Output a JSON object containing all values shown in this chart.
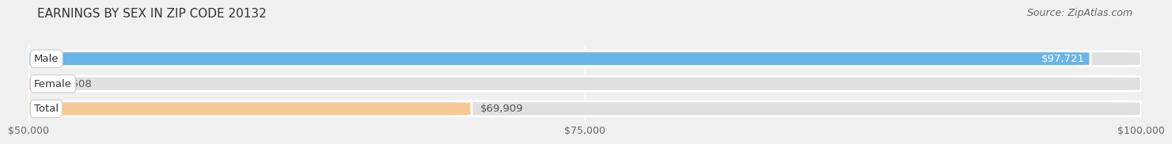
{
  "title": "EARNINGS BY SEX IN ZIP CODE 20132",
  "source": "Source: ZipAtlas.com",
  "categories": [
    "Male",
    "Female",
    "Total"
  ],
  "values": [
    97721,
    50508,
    69909
  ],
  "bar_colors": [
    "#6ab4e8",
    "#f0a0b8",
    "#f5c896"
  ],
  "bar_bg_color": "#e0e0e0",
  "label_bg_color": "#ffffff",
  "x_min": 50000,
  "x_max": 100000,
  "xticks": [
    50000,
    75000,
    100000
  ],
  "xtick_labels": [
    "$50,000",
    "$75,000",
    "$100,000"
  ],
  "value_labels": [
    "$97,721",
    "$50,508",
    "$69,909"
  ],
  "value_inside": [
    true,
    false,
    false
  ],
  "background_color": "#f0f0f0",
  "title_fontsize": 11,
  "source_fontsize": 9,
  "bar_label_fontsize": 9.5,
  "value_label_fontsize": 9.5,
  "axis_label_fontsize": 9
}
